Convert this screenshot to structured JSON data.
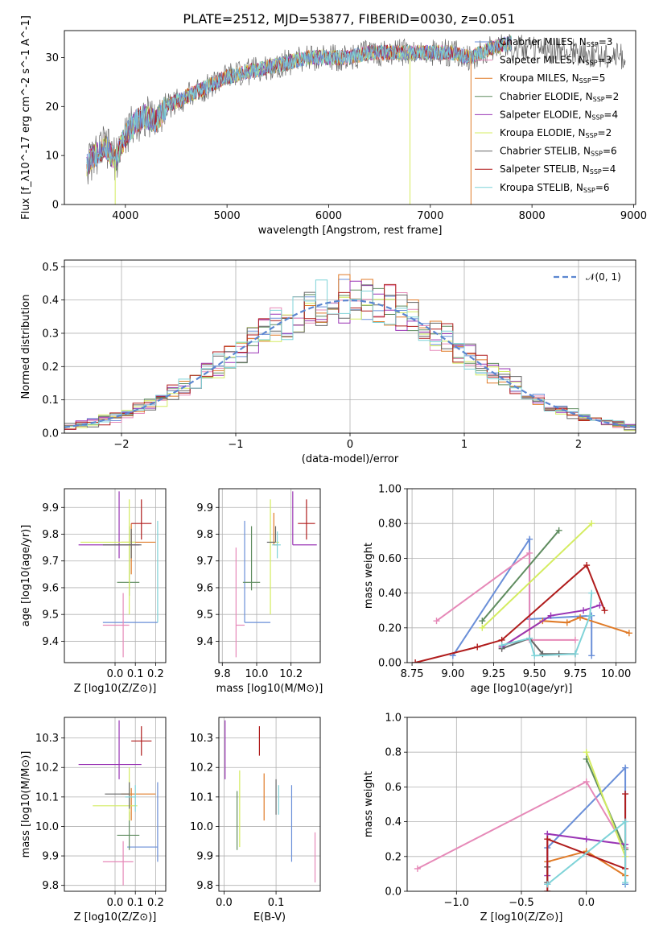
{
  "title": "PLATE=2512, MJD=53877, FIBERID=0030, z=0.051",
  "colors": {
    "series": [
      "#6a8fd8",
      "#e689b8",
      "#e07b28",
      "#5f8c5f",
      "#9a35b5",
      "#d4ec60",
      "#666666",
      "#b01c1c",
      "#7fd3d8"
    ]
  },
  "chart_data": [
    {
      "id": "spectrum",
      "type": "line",
      "xlabel": "wavelength [Angstrom, rest frame]",
      "ylabel": "Flux [f_λ10^-17 erg cm^-2 s^-1 A^-1]",
      "xlim": [
        3400,
        9020
      ],
      "ylim": [
        0,
        35.5
      ],
      "xticks": [
        4000,
        5000,
        6000,
        7000,
        8000,
        9000
      ],
      "yticks": [
        0,
        10,
        20,
        30
      ],
      "grid": false,
      "legend": "top-right",
      "series": [
        {
          "name": "Chabrier MILES, N_SSP=3"
        },
        {
          "name": "Salpeter MILES, N_SSP=3"
        },
        {
          "name": "Kroupa MILES, N_SSP=5"
        },
        {
          "name": "Chabrier ELODIE, N_SSP=2"
        },
        {
          "name": "Salpeter ELODIE, N_SSP=4"
        },
        {
          "name": "Kroupa ELODIE, N_SSP=2"
        },
        {
          "name": "Chabrier STELIB, N_SSP=6"
        },
        {
          "name": "Salpeter STELIB, N_SSP=4"
        },
        {
          "name": "Kroupa STELIB, N_SSP=6"
        }
      ],
      "continuum": {
        "x": [
          3620,
          3700,
          3800,
          3900,
          4000,
          4100,
          4200,
          4300,
          4400,
          4500,
          4600,
          4800,
          5000,
          5200,
          5400,
          5600,
          5800,
          6000,
          6200,
          6400,
          6600,
          6800,
          7000,
          7200,
          7400,
          7600,
          7800
        ],
        "y": [
          8,
          10,
          12,
          9,
          14,
          17,
          18,
          17,
          20,
          21,
          22,
          24,
          26,
          27,
          28,
          29,
          30,
          30,
          30,
          31,
          31,
          31,
          31,
          31,
          30,
          32,
          33
        ]
      }
    },
    {
      "id": "residuals",
      "type": "histogram",
      "xlabel": "(data-model)/error",
      "ylabel": "Normed distribution",
      "xlim": [
        -2.5,
        2.5
      ],
      "ylim": [
        0,
        0.52
      ],
      "xticks": [
        -2,
        -1,
        0,
        1,
        2
      ],
      "yticks": [
        0.0,
        0.1,
        0.2,
        0.3,
        0.4,
        0.5
      ],
      "grid": true,
      "legend": "top-right",
      "legend_label": "𝒩(0, 1)",
      "bin_width": 0.1
    },
    {
      "id": "age-vs-Z",
      "type": "errorbar",
      "xlabel": "Z [log10(Z/Z⊙)]",
      "ylabel": "age [log10(age/yr)]",
      "xlim": [
        -0.25,
        0.25
      ],
      "ylim": [
        9.32,
        9.97
      ],
      "xticks": [
        0.0,
        0.1,
        0.2
      ],
      "yticks": [
        9.4,
        9.5,
        9.6,
        9.7,
        9.8,
        9.9
      ],
      "points": [
        {
          "x": 0.06,
          "y": 9.47,
          "xerr": [
            0.12,
            0.15
          ],
          "yerr": [
            0.0,
            0.0
          ]
        },
        {
          "x": 0.04,
          "y": 9.46,
          "xerr": [
            0.1,
            0.03
          ],
          "yerr": [
            0.12,
            0.12
          ]
        },
        {
          "x": 0.08,
          "y": 9.77,
          "xerr": [
            0.05,
            0.12
          ],
          "yerr": [
            0.12,
            0.07
          ]
        },
        {
          "x": 0.07,
          "y": 9.62,
          "xerr": [
            0.06,
            0.05
          ],
          "yerr": [
            0.05,
            0.21
          ]
        },
        {
          "x": 0.02,
          "y": 9.76,
          "xerr": [
            0.2,
            0.1
          ],
          "yerr": [
            0.05,
            0.2
          ]
        },
        {
          "x": 0.07,
          "y": 9.77,
          "xerr": [
            0.24,
            0.03
          ],
          "yerr": [
            0.27,
            0.16
          ]
        },
        {
          "x": 0.08,
          "y": 9.76,
          "xerr": [
            0.14,
            0.05
          ],
          "yerr": [
            0.05,
            0.06
          ]
        },
        {
          "x": 0.13,
          "y": 9.84,
          "xerr": [
            0.05,
            0.05
          ],
          "yerr": [
            0.06,
            0.09
          ]
        },
        {
          "x": 0.21,
          "y": 9.47,
          "xerr": [
            0.0,
            0.0
          ],
          "yerr": [
            0.0,
            0.38
          ]
        }
      ]
    },
    {
      "id": "age-vs-mass",
      "type": "errorbar",
      "xlabel": "mass [log10(M/M⊙)]",
      "ylabel": "",
      "xlim": [
        9.78,
        10.37
      ],
      "ylim": [
        9.32,
        9.97
      ],
      "xticks": [
        9.8,
        10.0,
        10.2
      ],
      "yticks": [
        9.4,
        9.5,
        9.6,
        9.7,
        9.8,
        9.9
      ],
      "points": [
        {
          "x": 9.93,
          "y": 9.47,
          "xerr": [
            0.0,
            0.15
          ],
          "yerr": [
            0.0,
            0.38
          ]
        },
        {
          "x": 9.88,
          "y": 9.46,
          "xerr": [
            0.0,
            0.05
          ],
          "yerr": [
            0.12,
            0.29
          ]
        },
        {
          "x": 10.1,
          "y": 9.76,
          "xerr": [
            0.0,
            0.02
          ],
          "yerr": [
            0.0,
            0.12
          ]
        },
        {
          "x": 9.97,
          "y": 9.62,
          "xerr": [
            0.05,
            0.05
          ],
          "yerr": [
            0.03,
            0.21
          ]
        },
        {
          "x": 10.21,
          "y": 9.76,
          "xerr": [
            0.0,
            0.14
          ],
          "yerr": [
            0.0,
            0.2
          ]
        },
        {
          "x": 10.08,
          "y": 9.77,
          "xerr": [
            0.0,
            0.05
          ],
          "yerr": [
            0.27,
            0.16
          ]
        },
        {
          "x": 10.11,
          "y": 9.77,
          "xerr": [
            0.05,
            0.0
          ],
          "yerr": [
            0.0,
            0.06
          ]
        },
        {
          "x": 10.29,
          "y": 9.84,
          "xerr": [
            0.05,
            0.05
          ],
          "yerr": [
            0.06,
            0.09
          ]
        },
        {
          "x": 10.12,
          "y": 9.76,
          "xerr": [
            0.03,
            0.02
          ],
          "yerr": [
            0.05,
            0.05
          ]
        }
      ]
    },
    {
      "id": "mass-weight-vs-age",
      "type": "line",
      "xlabel": "age [log10(age/yr)]",
      "ylabel": "mass weight",
      "xlim": [
        8.72,
        10.12
      ],
      "ylim": [
        0.0,
        1.0
      ],
      "xticks": [
        8.75,
        9.0,
        9.25,
        9.5,
        9.75,
        10.0
      ],
      "yticks": [
        0.0,
        0.2,
        0.4,
        0.6,
        0.8,
        1.0
      ],
      "grid": true,
      "series": [
        {
          "x": [
            9.0,
            9.47,
            9.47,
            9.85,
            9.85
          ],
          "y": [
            0.04,
            0.71,
            0.25,
            0.27,
            0.04
          ]
        },
        {
          "x": [
            8.9,
            9.47,
            9.47,
            9.75
          ],
          "y": [
            0.24,
            0.63,
            0.13,
            0.13
          ]
        },
        {
          "x": [
            9.3,
            9.55,
            9.7,
            9.78,
            10.08
          ],
          "y": [
            0.09,
            0.24,
            0.23,
            0.26,
            0.17
          ]
        },
        {
          "x": [
            9.18,
            9.65
          ],
          "y": [
            0.24,
            0.76
          ]
        },
        {
          "x": [
            9.3,
            9.6,
            9.8,
            9.9
          ],
          "y": [
            0.09,
            0.27,
            0.3,
            0.33
          ]
        },
        {
          "x": [
            9.18,
            9.85
          ],
          "y": [
            0.2,
            0.8
          ]
        },
        {
          "x": [
            9.3,
            9.47,
            9.55,
            9.65,
            9.75
          ],
          "y": [
            0.08,
            0.14,
            0.05,
            0.05,
            0.05
          ]
        },
        {
          "x": [
            8.77,
            9.15,
            9.3,
            9.82,
            9.93
          ],
          "y": [
            0.0,
            0.09,
            0.13,
            0.56,
            0.3
          ]
        },
        {
          "x": [
            9.3,
            9.47,
            9.5,
            9.75,
            9.84,
            9.85
          ],
          "y": [
            0.1,
            0.14,
            0.04,
            0.05,
            0.27,
            0.4
          ]
        }
      ]
    },
    {
      "id": "mass-vs-Z",
      "type": "errorbar",
      "xlabel": "Z [log10(Z/Z⊙)]",
      "ylabel": "mass [log10(M/M⊙)]",
      "xlim": [
        -0.25,
        0.25
      ],
      "ylim": [
        9.78,
        10.37
      ],
      "xticks": [
        0.0,
        0.1,
        0.2
      ],
      "yticks": [
        9.8,
        9.9,
        10.0,
        10.1,
        10.2,
        10.3
      ],
      "points": [
        {
          "x": 0.21,
          "y": 9.93,
          "xerr": [
            0.15,
            0.0
          ],
          "yerr": [
            0.05,
            0.22
          ]
        },
        {
          "x": 0.04,
          "y": 9.88,
          "xerr": [
            0.1,
            0.05
          ],
          "yerr": [
            0.08,
            0.07
          ]
        },
        {
          "x": 0.08,
          "y": 10.11,
          "xerr": [
            0.05,
            0.12
          ],
          "yerr": [
            0.09,
            0.02
          ]
        },
        {
          "x": 0.07,
          "y": 9.97,
          "xerr": [
            0.06,
            0.05
          ],
          "yerr": [
            0.05,
            0.08
          ]
        },
        {
          "x": 0.02,
          "y": 10.21,
          "xerr": [
            0.2,
            0.11
          ],
          "yerr": [
            0.05,
            0.15
          ]
        },
        {
          "x": 0.07,
          "y": 10.07,
          "xerr": [
            0.18,
            0.04
          ],
          "yerr": [
            0.05,
            0.13
          ]
        },
        {
          "x": 0.07,
          "y": 10.11,
          "xerr": [
            0.12,
            0.0
          ],
          "yerr": [
            0.05,
            0.04
          ]
        },
        {
          "x": 0.13,
          "y": 10.29,
          "xerr": [
            0.05,
            0.05
          ],
          "yerr": [
            0.05,
            0.05
          ]
        },
        {
          "x": 0.1,
          "y": 10.1,
          "xerr": [
            0.05,
            0.0
          ],
          "yerr": [
            0.05,
            0.04
          ]
        }
      ]
    },
    {
      "id": "mass-vs-EBV",
      "type": "errorbar",
      "xlabel": "E(B-V)",
      "ylabel": "",
      "xlim": [
        -0.01,
        0.185
      ],
      "ylim": [
        9.78,
        10.37
      ],
      "xticks": [
        0.0,
        0.1
      ],
      "yticks": [
        9.8,
        9.9,
        10.0,
        10.1,
        10.2,
        10.3
      ],
      "points": [
        {
          "x": 0.13,
          "y": 10.01,
          "xerr": [
            0,
            0
          ],
          "yerr": [
            0.13,
            0.13
          ]
        },
        {
          "x": 0.175,
          "y": 9.89,
          "xerr": [
            0,
            0
          ],
          "yerr": [
            0.08,
            0.09
          ]
        },
        {
          "x": 0.077,
          "y": 10.1,
          "xerr": [
            0,
            0
          ],
          "yerr": [
            0.08,
            0.08
          ]
        },
        {
          "x": 0.025,
          "y": 10.02,
          "xerr": [
            0,
            0
          ],
          "yerr": [
            0.1,
            0.1
          ]
        },
        {
          "x": 0.002,
          "y": 10.26,
          "xerr": [
            0,
            0
          ],
          "yerr": [
            0.1,
            0.1
          ]
        },
        {
          "x": 0.03,
          "y": 10.06,
          "xerr": [
            0,
            0
          ],
          "yerr": [
            0.13,
            0.13
          ]
        },
        {
          "x": 0.1,
          "y": 10.1,
          "xerr": [
            0,
            0
          ],
          "yerr": [
            0.06,
            0.06
          ]
        },
        {
          "x": 0.068,
          "y": 10.29,
          "xerr": [
            0,
            0
          ],
          "yerr": [
            0.05,
            0.05
          ]
        },
        {
          "x": 0.105,
          "y": 10.09,
          "xerr": [
            0,
            0
          ],
          "yerr": [
            0.05,
            0.05
          ]
        }
      ]
    },
    {
      "id": "mass-weight-vs-Z",
      "type": "line",
      "xlabel": "Z [log10(Z/Z⊙)]",
      "ylabel": "mass weight",
      "xlim": [
        -1.38,
        0.38
      ],
      "ylim": [
        0.0,
        1.0
      ],
      "xticks": [
        -1.0,
        -0.5,
        0.0
      ],
      "yticks": [
        0.0,
        0.2,
        0.4,
        0.6,
        0.8,
        1.0
      ],
      "grid": true,
      "series": [
        {
          "x": [
            -0.3,
            -0.3,
            0.3,
            0.3
          ],
          "y": [
            0.04,
            0.25,
            0.71,
            0.04
          ]
        },
        {
          "x": [
            -1.3,
            0.0,
            0.3
          ],
          "y": [
            0.13,
            0.63,
            0.25
          ]
        },
        {
          "x": [
            -0.3,
            0.0,
            0.3
          ],
          "y": [
            0.17,
            0.23,
            0.09
          ]
        },
        {
          "x": [
            0.0,
            0.3
          ],
          "y": [
            0.76,
            0.24
          ]
        },
        {
          "x": [
            -0.3,
            -0.3,
            0.0,
            0.3
          ],
          "y": [
            0.09,
            0.33,
            0.3,
            0.27
          ]
        },
        {
          "x": [
            0.0,
            0.3
          ],
          "y": [
            0.8,
            0.2
          ]
        },
        {
          "x": [
            -0.3,
            -0.3
          ],
          "y": [
            0.05,
            0.14
          ]
        },
        {
          "x": [
            -0.3,
            -0.3,
            0.3,
            0.3
          ],
          "y": [
            0.0,
            0.3,
            0.13,
            0.56
          ]
        },
        {
          "x": [
            -0.3,
            0.3,
            0.3
          ],
          "y": [
            0.04,
            0.4,
            0.05
          ]
        }
      ]
    }
  ]
}
